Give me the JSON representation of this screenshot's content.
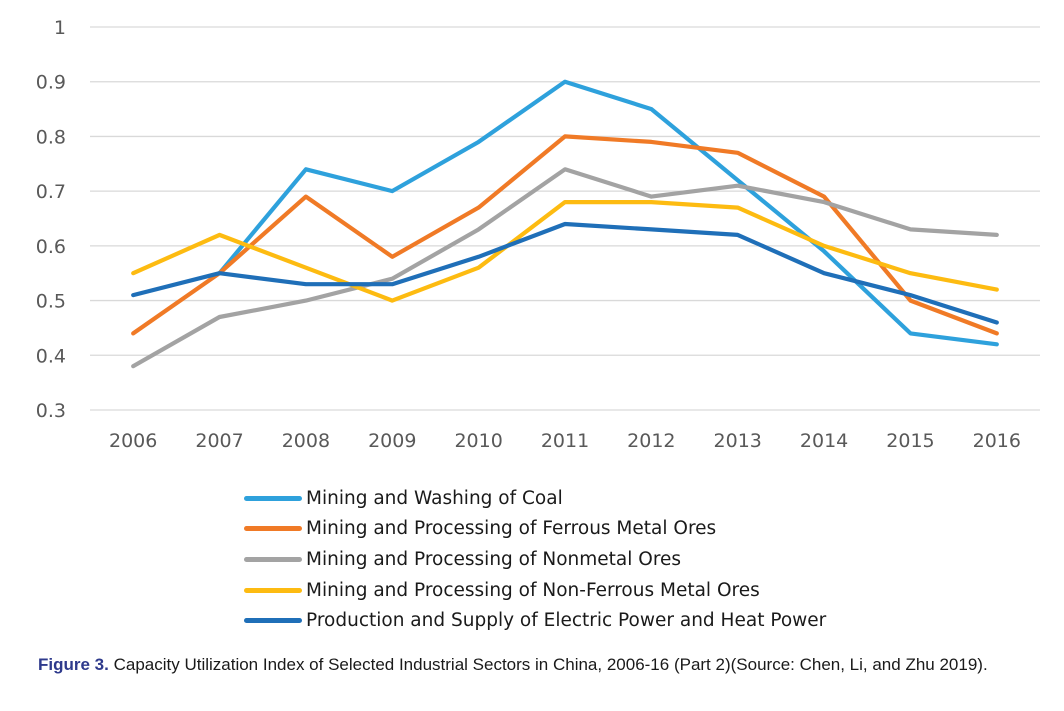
{
  "chart_data": {
    "type": "line",
    "title": "",
    "xlabel": "",
    "ylabel": "",
    "x": [
      "2006",
      "2007",
      "2008",
      "2009",
      "2010",
      "2011",
      "2012",
      "2013",
      "2014",
      "2015",
      "2016"
    ],
    "ylim": [
      0.3,
      1
    ],
    "yticks": [
      "0.3",
      "0.4",
      "0.5",
      "0.6",
      "0.7",
      "0.8",
      "0.9",
      "1"
    ],
    "grid": "horizontal",
    "legend_position": "bottom",
    "series": [
      {
        "name": "Mining and Washing of Coal",
        "color": "#2ea1dc",
        "values": [
          null,
          0.55,
          0.74,
          0.7,
          0.79,
          0.9,
          0.85,
          0.72,
          0.59,
          0.44,
          0.42
        ]
      },
      {
        "name": "Mining and Processing of Ferrous Metal Ores",
        "color": "#f07a26",
        "values": [
          0.44,
          0.55,
          0.69,
          0.58,
          0.67,
          0.8,
          0.79,
          0.77,
          0.69,
          0.5,
          0.44
        ]
      },
      {
        "name": "Mining and Processing of Nonmetal Ores",
        "color": "#a3a3a3",
        "values": [
          0.38,
          0.47,
          0.5,
          0.54,
          0.63,
          0.74,
          0.69,
          0.71,
          0.68,
          0.63,
          0.62
        ]
      },
      {
        "name": "Mining and Processing of Non-Ferrous Metal Ores",
        "color": "#fdbb11",
        "values": [
          0.55,
          0.62,
          0.56,
          0.5,
          0.56,
          0.68,
          0.68,
          0.67,
          0.6,
          0.55,
          0.52
        ]
      },
      {
        "name": "Production and Supply of Electric Power and Heat Power",
        "color": "#1f6fb8",
        "values": [
          0.51,
          0.55,
          0.53,
          0.53,
          0.58,
          0.64,
          0.63,
          0.62,
          0.55,
          0.51,
          0.46
        ]
      }
    ]
  },
  "caption": {
    "label": "Figure 3.",
    "text": " Capacity Utilization Index of Selected Industrial Sectors in China, 2006-16 (Part 2)(Source: Chen, Li, and Zhu 2019)."
  }
}
